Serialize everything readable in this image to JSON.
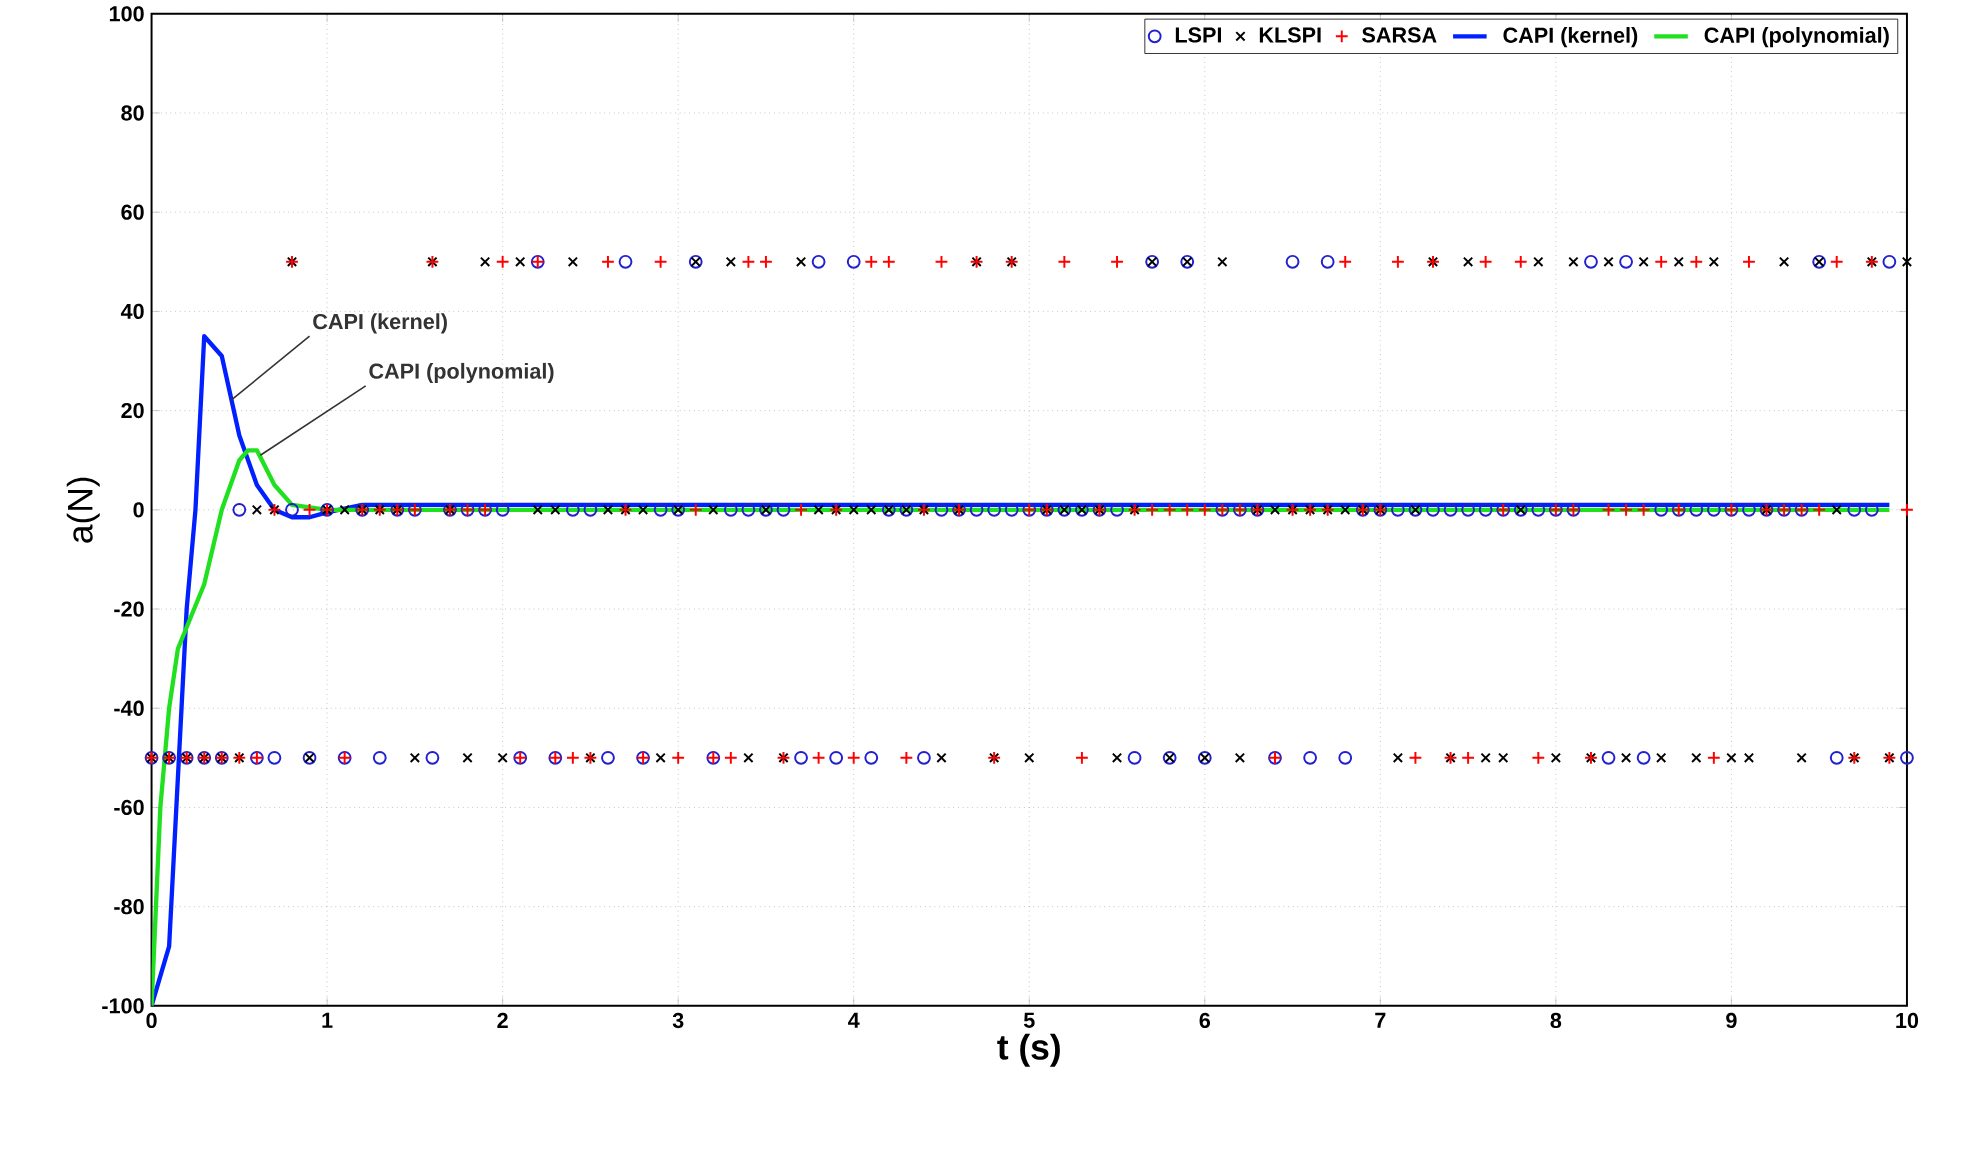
{
  "chart_data": {
    "type": "scatter",
    "xlabel": "t (s)",
    "ylabel": "a(N)",
    "x": [
      0,
      0.1,
      0.2,
      0.3,
      0.4,
      0.5,
      0.6,
      0.7,
      0.8,
      0.9,
      1.0,
      1.1,
      1.2,
      1.3,
      1.4,
      1.5,
      1.6,
      1.7,
      1.8,
      1.9,
      2.0,
      2.1,
      2.2,
      2.3,
      2.4,
      2.5,
      2.6,
      2.7,
      2.8,
      2.9,
      3.0,
      3.1,
      3.2,
      3.3,
      3.4,
      3.5,
      3.6,
      3.7,
      3.8,
      3.9,
      4.0,
      4.1,
      4.2,
      4.3,
      4.4,
      4.5,
      4.6,
      4.7,
      4.8,
      4.9,
      5.0,
      5.1,
      5.2,
      5.3,
      5.4,
      5.5,
      5.6,
      5.7,
      5.8,
      5.9,
      6.0,
      6.1,
      6.2,
      6.3,
      6.4,
      6.5,
      6.6,
      6.7,
      6.8,
      6.9,
      7.0,
      7.1,
      7.2,
      7.3,
      7.4,
      7.5,
      7.6,
      7.7,
      7.8,
      7.9,
      8.0,
      8.1,
      8.2,
      8.3,
      8.4,
      8.5,
      8.6,
      8.7,
      8.8,
      8.9,
      9.0,
      9.1,
      9.2,
      9.3,
      9.4,
      9.5,
      9.6,
      9.7,
      9.8,
      9.9,
      10.0
    ],
    "series": [
      {
        "name": "LSPI",
        "color": "#2020d0",
        "marker": "circle",
        "values": [
          -50,
          -50,
          -50,
          -50,
          -50,
          0,
          -50,
          -50,
          0,
          -50,
          0,
          -50,
          0,
          -50,
          0,
          0,
          -50,
          0,
          0,
          0,
          0,
          -50,
          50,
          -50,
          0,
          0,
          -50,
          50,
          -50,
          0,
          0,
          50,
          -50,
          0,
          0,
          0,
          0,
          -50,
          50,
          -50,
          50,
          -50,
          0,
          0,
          -50,
          0,
          0,
          0,
          0,
          0,
          0,
          0,
          0,
          0,
          0,
          0,
          -50,
          50,
          -50,
          50,
          -50,
          0,
          0,
          0,
          -50,
          50,
          -50,
          50,
          -50,
          0,
          0,
          0,
          0,
          0,
          0,
          0,
          0,
          0,
          0,
          0,
          0,
          0,
          50,
          -50,
          50,
          -50,
          0,
          0,
          0,
          0,
          0,
          0,
          0,
          0,
          0,
          50,
          -50,
          0,
          0,
          50,
          -50
        ]
      },
      {
        "name": "KLSPI",
        "color": "#000000",
        "marker": "cross",
        "values": [
          -50,
          -50,
          -50,
          -50,
          -50,
          -50,
          0,
          0,
          50,
          -50,
          0,
          0,
          0,
          0,
          0,
          -50,
          50,
          0,
          -50,
          50,
          -50,
          50,
          0,
          0,
          50,
          -50,
          0,
          0,
          0,
          -50,
          0,
          50,
          0,
          50,
          -50,
          0,
          -50,
          50,
          0,
          0,
          0,
          0,
          0,
          0,
          0,
          -50,
          0,
          50,
          -50,
          50,
          -50,
          0,
          0,
          0,
          0,
          -50,
          0,
          50,
          -50,
          50,
          -50,
          50,
          -50,
          0,
          0,
          0,
          0,
          0,
          0,
          0,
          0,
          -50,
          0,
          50,
          -50,
          50,
          -50,
          -50,
          0,
          50,
          -50,
          50,
          -50,
          50,
          -50,
          50,
          -50,
          50,
          -50,
          50,
          -50,
          -50,
          0,
          50,
          -50,
          50,
          0,
          -50,
          50,
          -50,
          50
        ]
      },
      {
        "name": "SARSA",
        "color": "#ff0000",
        "marker": "plus",
        "values": [
          -50,
          -50,
          -50,
          -50,
          -50,
          -50,
          -50,
          0,
          50,
          0,
          0,
          -50,
          0,
          0,
          0,
          0,
          50,
          0,
          0,
          0,
          50,
          -50,
          50,
          -50,
          -50,
          -50,
          50,
          0,
          -50,
          50,
          -50,
          0,
          -50,
          -50,
          50,
          50,
          -50,
          0,
          -50,
          0,
          -50,
          50,
          50,
          -50,
          0,
          50,
          0,
          50,
          -50,
          50,
          0,
          0,
          50,
          -50,
          0,
          50,
          0,
          0,
          0,
          0,
          0,
          0,
          0,
          0,
          -50,
          0,
          0,
          0,
          50,
          0,
          0,
          50,
          -50,
          50,
          -50,
          -50,
          50,
          0,
          50,
          -50,
          0,
          0,
          -50,
          0,
          0,
          0,
          50,
          0,
          50,
          -50,
          0,
          50,
          0,
          0,
          0,
          0,
          50,
          -50,
          50,
          -50,
          0
        ]
      },
      {
        "name": "CAPI (kernel)",
        "type": "line",
        "color": "#0020ff",
        "x": [
          0,
          0.1,
          0.2,
          0.25,
          0.3,
          0.4,
          0.5,
          0.6,
          0.7,
          0.8,
          0.9,
          1.0,
          1.2,
          9.9
        ],
        "values": [
          -100,
          -88,
          -20,
          0,
          35,
          31,
          15,
          5,
          0,
          -1.5,
          -1.5,
          -0.5,
          1,
          1
        ]
      },
      {
        "name": "CAPI (polynomial)",
        "type": "line",
        "color": "#20e020",
        "x": [
          0,
          0.05,
          0.1,
          0.15,
          0.3,
          0.4,
          0.5,
          0.55,
          0.6,
          0.7,
          0.8,
          1.0,
          9.9
        ],
        "values": [
          -100,
          -60,
          -40,
          -28,
          -15,
          0,
          10,
          12,
          12,
          5,
          1,
          0,
          0
        ]
      }
    ],
    "annotations": [
      {
        "text": "CAPI (kernel)",
        "x": 0.45,
        "y": 22
      },
      {
        "text": "CAPI (polynomial)",
        "x": 0.62,
        "y": 11
      }
    ],
    "xlim": [
      0,
      10
    ],
    "ylim": [
      -100,
      100
    ],
    "xticks": [
      0,
      1,
      2,
      3,
      4,
      5,
      6,
      7,
      8,
      9,
      10
    ],
    "yticks": [
      -100,
      -80,
      -60,
      -40,
      -20,
      0,
      20,
      40,
      60,
      80,
      100
    ],
    "grid": true,
    "legend": "top right",
    "line_style": "solid"
  }
}
